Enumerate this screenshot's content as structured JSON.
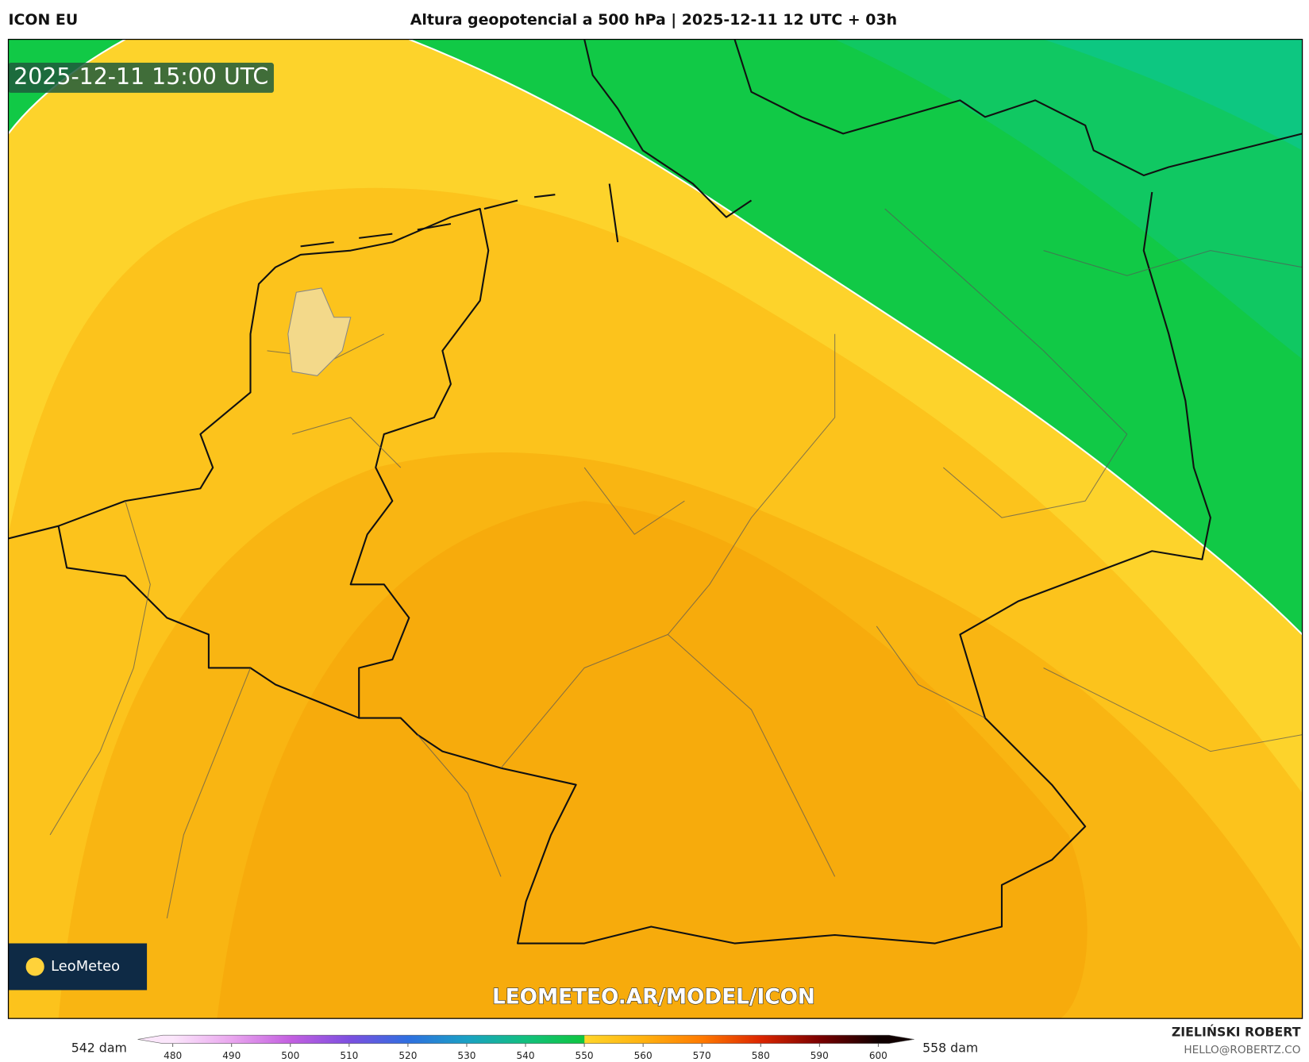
{
  "header": {
    "model": "ICON EU",
    "title": "Altura geopotencial a 500 hPa | 2025-12-11 12 UTC + 03h"
  },
  "map": {
    "valid_time": "2025-12-11 15:00 UTC",
    "watermark": "LEOMETEO.AR/MODEL/ICON",
    "logo": "LeoMeteo"
  },
  "colorbar": {
    "ticks": [
      480,
      490,
      500,
      510,
      520,
      530,
      540,
      550,
      560,
      570,
      580,
      590,
      600
    ],
    "min_label": "542 dam",
    "max_label": "558 dam"
  },
  "footer": {
    "author": "ZIELIŃSKI ROBERT",
    "email": "HELLO@ROBERTZ.CO"
  }
}
